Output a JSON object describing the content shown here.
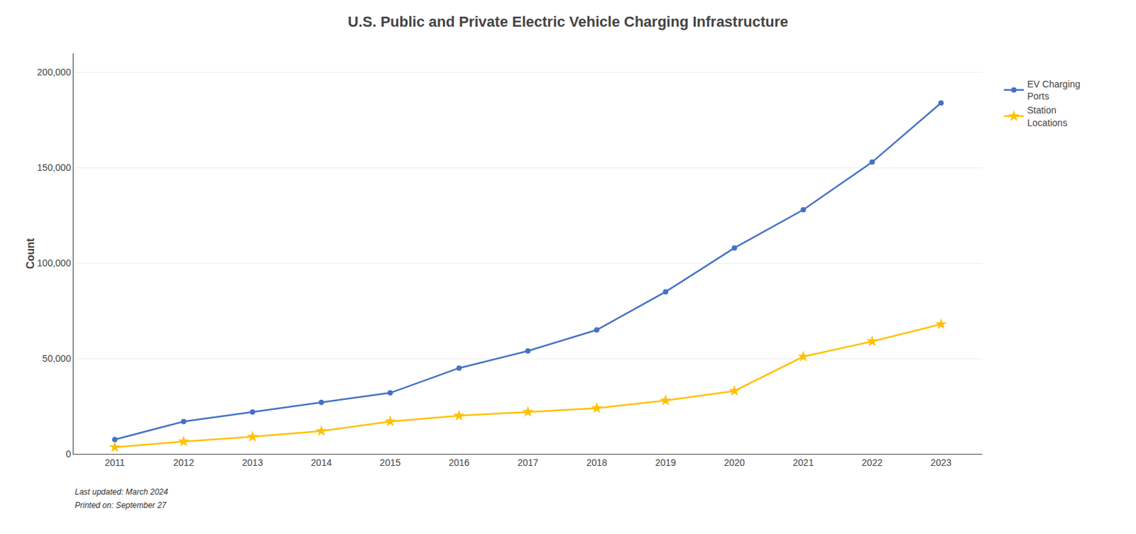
{
  "chart_data": {
    "type": "line",
    "title": "U.S. Public and Private Electric Vehicle Charging Infrastructure",
    "y_label": "Count",
    "x": [
      2011,
      2012,
      2013,
      2014,
      2015,
      2016,
      2017,
      2018,
      2019,
      2020,
      2021,
      2022,
      2023
    ],
    "series": [
      {
        "name": "EV Charging\nPorts",
        "color": "#4472C4",
        "marker": "circle",
        "values": [
          7500,
          17000,
          22000,
          27000,
          32000,
          45000,
          54000,
          65000,
          85000,
          108000,
          128000,
          153000,
          184000
        ]
      },
      {
        "name": "Station\nLocations",
        "color": "#FFC000",
        "marker": "star",
        "values": [
          3500,
          6500,
          9000,
          12000,
          17000,
          20000,
          22000,
          24000,
          28000,
          33000,
          51000,
          59000,
          68000
        ]
      }
    ],
    "xlim": [
      2010.4,
      2023.6
    ],
    "xticks": [
      2011,
      2012,
      2013,
      2014,
      2015,
      2016,
      2017,
      2018,
      2019,
      2020,
      2021,
      2022,
      2023
    ],
    "ylim": [
      0,
      210000
    ],
    "yticks": [
      0,
      {
        "value": 50000,
        "label": "50,000"
      },
      {
        "value": 100000,
        "label": "100,000"
      },
      {
        "value": 150000,
        "label": "150,000"
      },
      {
        "value": 200000,
        "label": "200,000"
      }
    ],
    "grid": "y",
    "legend": "right",
    "annotations": [
      "Last updated: March 2024",
      "Printed on: September 27"
    ]
  }
}
